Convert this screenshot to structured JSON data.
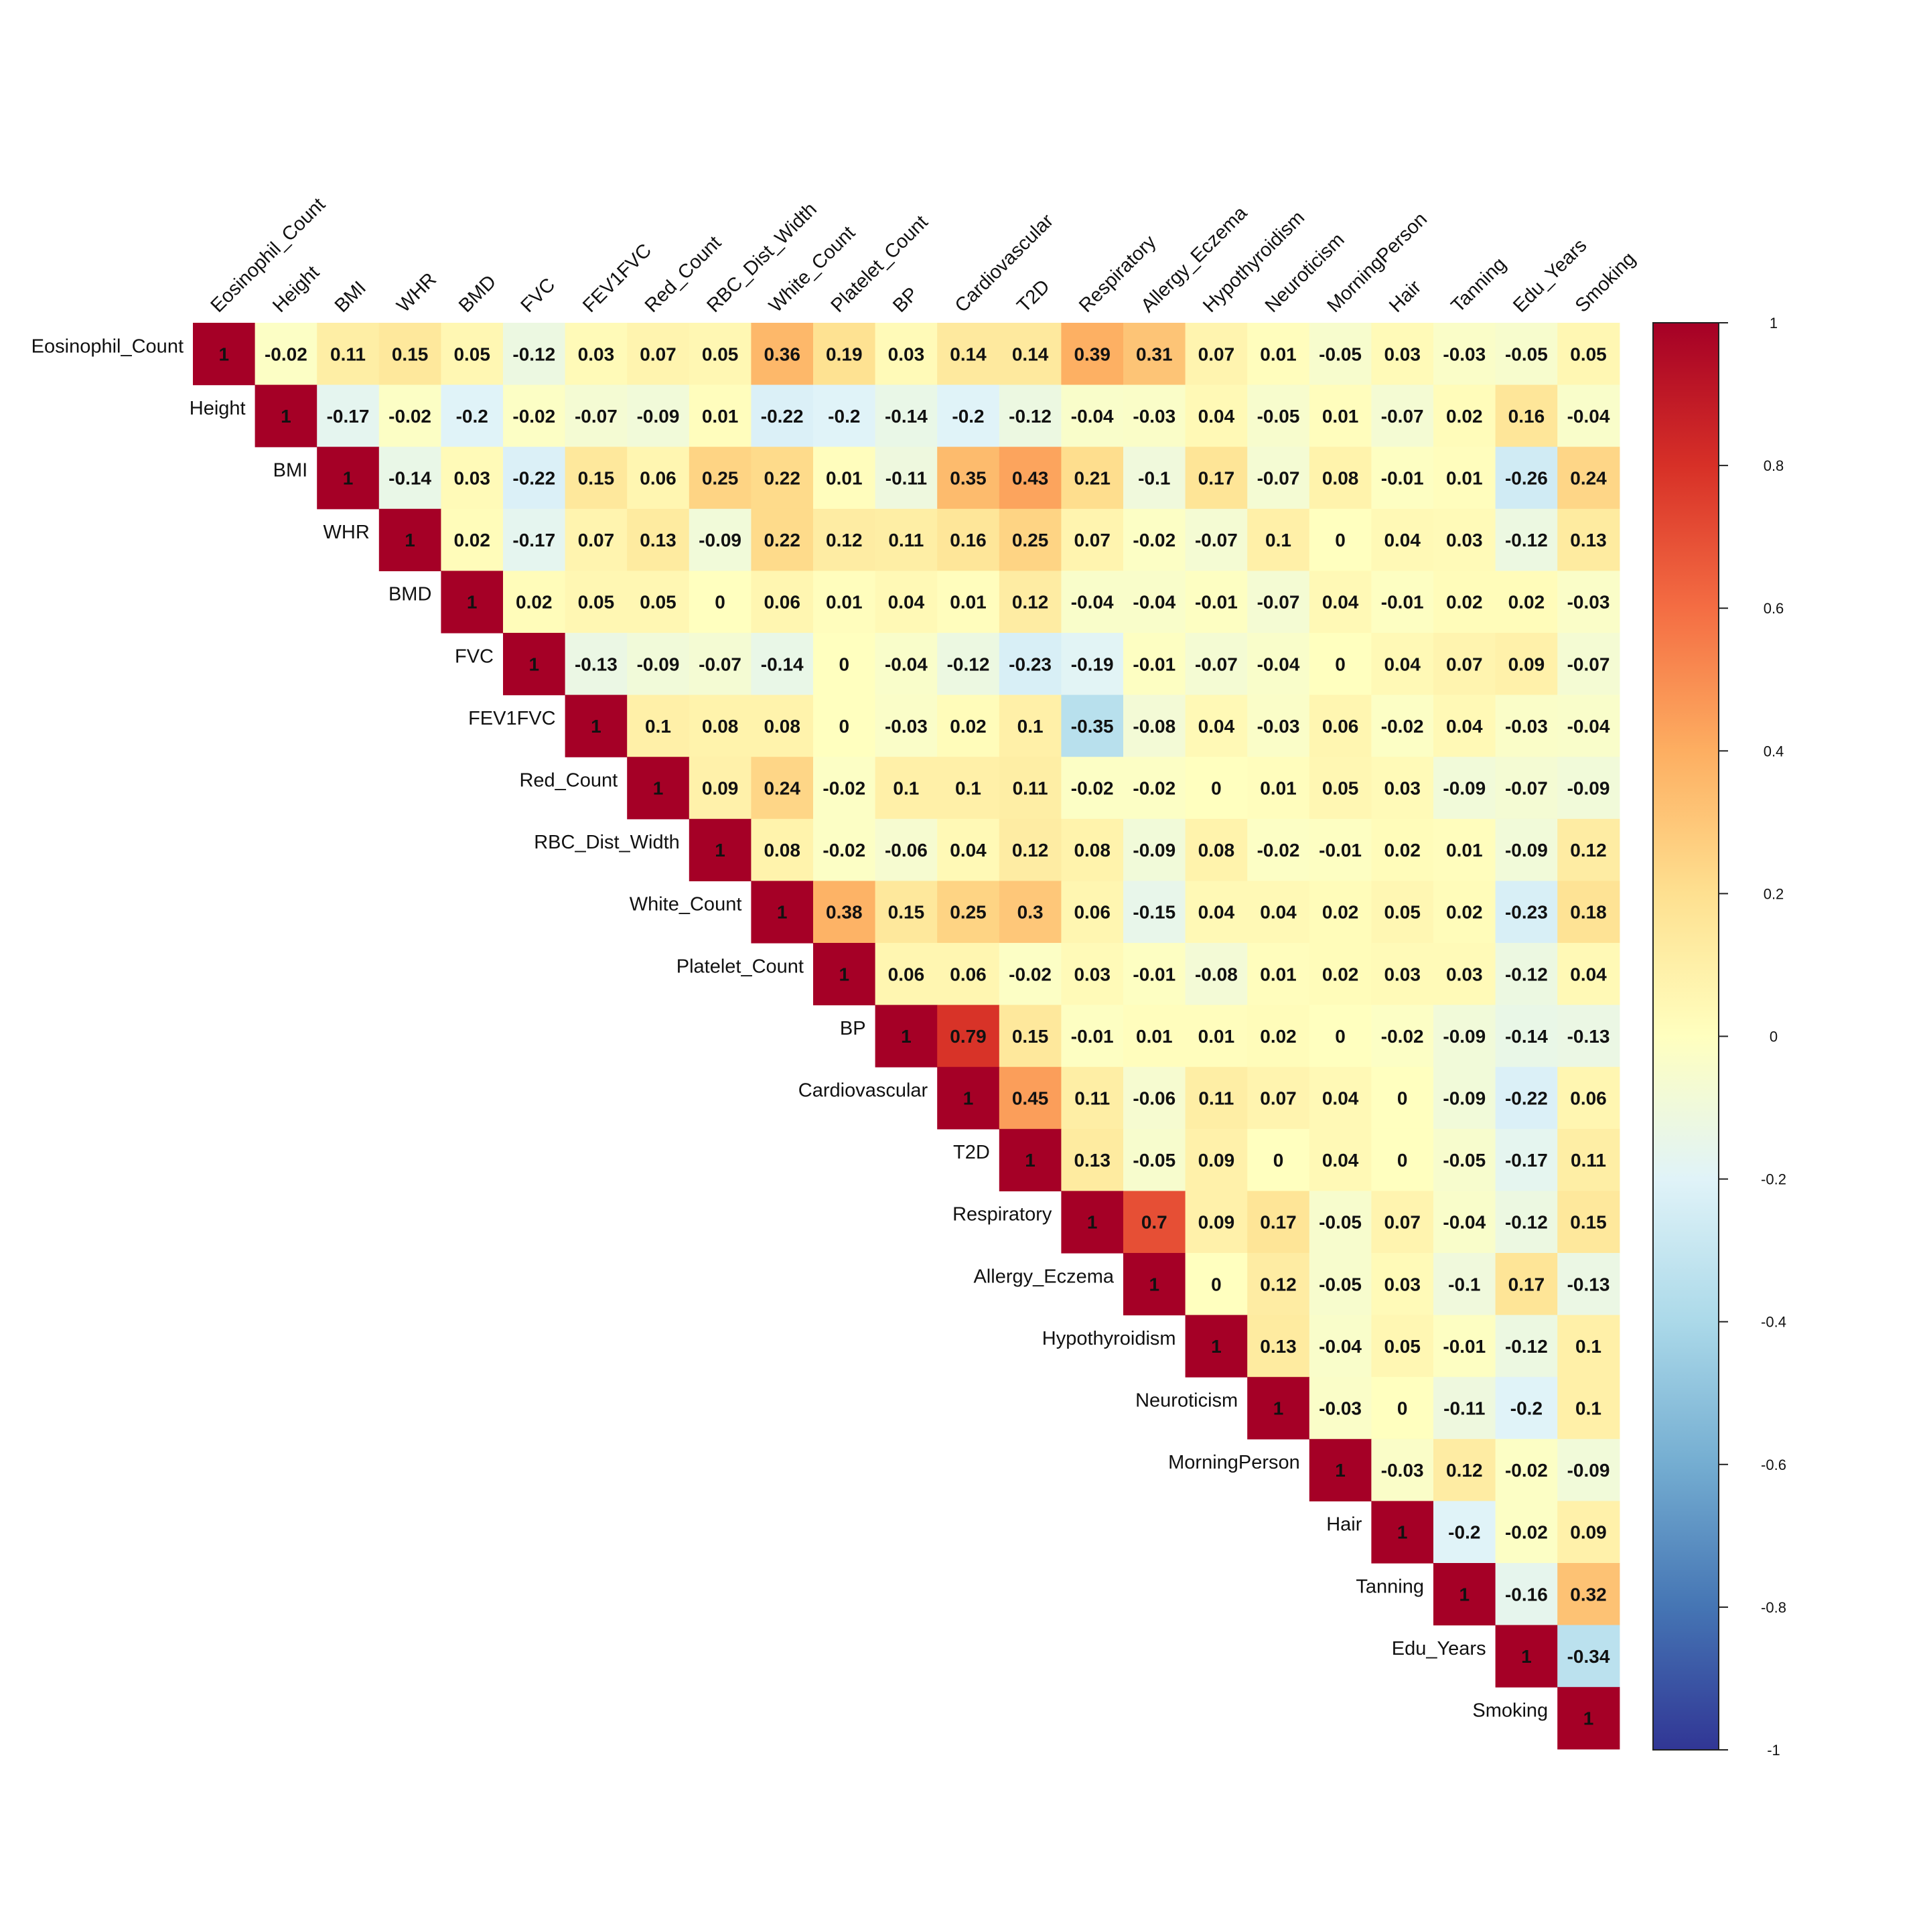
{
  "chart_data": {
    "type": "heatmap",
    "subtype": "upper-triangular correlation matrix",
    "title": "",
    "variables": [
      "Eosinophil_Count",
      "Height",
      "BMI",
      "WHR",
      "BMD",
      "FVC",
      "FEV1FVC",
      "Red_Count",
      "RBC_Dist_Width",
      "White_Count",
      "Platelet_Count",
      "BP",
      "Cardiovascular",
      "T2D",
      "Respiratory",
      "Allergy_Eczema",
      "Hypothyroidism",
      "Neuroticism",
      "MorningPerson",
      "Hair",
      "Tanning",
      "Edu_Years",
      "Smoking"
    ],
    "upper_rows": [
      [
        1,
        -0.02,
        0.11,
        0.15,
        0.05,
        -0.12,
        0.03,
        0.07,
        0.05,
        0.36,
        0.19,
        0.03,
        0.14,
        0.14,
        0.39,
        0.31,
        0.07,
        0.01,
        -0.05,
        0.03,
        -0.03,
        -0.05,
        0.05
      ],
      [
        1,
        -0.17,
        -0.02,
        -0.2,
        -0.02,
        -0.07,
        -0.09,
        0.01,
        -0.22,
        -0.2,
        -0.14,
        -0.2,
        -0.12,
        -0.04,
        -0.03,
        0.04,
        -0.05,
        0.01,
        -0.07,
        0.02,
        0.16,
        -0.04
      ],
      [
        1,
        -0.14,
        0.03,
        -0.22,
        0.15,
        0.06,
        0.25,
        0.22,
        0.01,
        -0.11,
        0.35,
        0.43,
        0.21,
        -0.1,
        0.17,
        -0.07,
        0.08,
        -0.01,
        0.01,
        -0.26,
        0.24
      ],
      [
        1,
        0.02,
        -0.17,
        0.07,
        0.13,
        -0.09,
        0.22,
        0.12,
        0.11,
        0.16,
        0.25,
        0.07,
        -0.02,
        -0.07,
        0.1,
        0,
        0.04,
        0.03,
        -0.12,
        0.13
      ],
      [
        1,
        0.02,
        0.05,
        0.05,
        0,
        0.06,
        0.01,
        0.04,
        0.01,
        0.12,
        -0.04,
        -0.04,
        -0.01,
        -0.07,
        0.04,
        -0.01,
        0.02,
        0.02,
        -0.03
      ],
      [
        1,
        -0.13,
        -0.09,
        -0.07,
        -0.14,
        0,
        -0.04,
        -0.12,
        -0.23,
        -0.19,
        -0.01,
        -0.07,
        -0.04,
        0,
        0.04,
        0.07,
        0.09,
        -0.07
      ],
      [
        1,
        0.1,
        0.08,
        0.08,
        0,
        -0.03,
        0.02,
        0.1,
        -0.35,
        -0.08,
        0.04,
        -0.03,
        0.06,
        -0.02,
        0.04,
        -0.03,
        -0.04
      ],
      [
        1,
        0.09,
        0.24,
        -0.02,
        0.1,
        0.1,
        0.11,
        -0.02,
        -0.02,
        0,
        0.01,
        0.05,
        0.03,
        -0.09,
        -0.07,
        -0.09
      ],
      [
        1,
        0.08,
        -0.02,
        -0.06,
        0.04,
        0.12,
        0.08,
        -0.09,
        0.08,
        -0.02,
        -0.01,
        0.02,
        0.01,
        -0.09,
        0.12
      ],
      [
        1,
        0.38,
        0.15,
        0.25,
        0.3,
        0.06,
        -0.15,
        0.04,
        0.04,
        0.02,
        0.05,
        0.02,
        -0.23,
        0.18
      ],
      [
        1,
        0.06,
        0.06,
        -0.02,
        0.03,
        -0.01,
        -0.08,
        0.01,
        0.02,
        0.03,
        0.03,
        -0.12,
        0.04
      ],
      [
        1,
        0.79,
        0.15,
        -0.01,
        0.01,
        0.01,
        0.02,
        0,
        -0.02,
        -0.09,
        -0.14,
        -0.13
      ],
      [
        1,
        0.45,
        0.11,
        -0.06,
        0.11,
        0.07,
        0.04,
        0,
        -0.09,
        -0.22,
        0.06
      ],
      [
        1,
        0.13,
        -0.05,
        0.09,
        0,
        0.04,
        0,
        -0.05,
        -0.17,
        0.11
      ],
      [
        1,
        0.7,
        0.09,
        0.17,
        -0.05,
        0.07,
        -0.04,
        -0.12,
        0.15
      ],
      [
        1,
        0,
        0.12,
        -0.05,
        0.03,
        -0.1,
        0.17,
        -0.13
      ],
      [
        1,
        0.13,
        -0.04,
        0.05,
        -0.01,
        -0.12,
        0.1
      ],
      [
        1,
        -0.03,
        0,
        -0.11,
        -0.2,
        0.1
      ],
      [
        1,
        -0.03,
        0.12,
        -0.02,
        -0.09
      ],
      [
        1,
        -0.2,
        -0.02,
        0.09
      ],
      [
        1,
        -0.16,
        0.32
      ],
      [
        1,
        -0.34
      ],
      [
        1
      ]
    ],
    "colorbar": {
      "range": [
        -1,
        1
      ],
      "ticks": [
        "1",
        "0.8",
        "0.6",
        "0.4",
        "0.2",
        "0",
        "-0.2",
        "-0.4",
        "-0.6",
        "-0.8",
        "-1"
      ],
      "palette": [
        "#313695",
        "#4575B4",
        "#74ADD1",
        "#ABD9E9",
        "#E0F3F8",
        "#FFFFBF",
        "#FEE090",
        "#FDAE61",
        "#F46D43",
        "#D73027",
        "#A50026"
      ]
    },
    "grid": false,
    "legend_position": "right"
  }
}
